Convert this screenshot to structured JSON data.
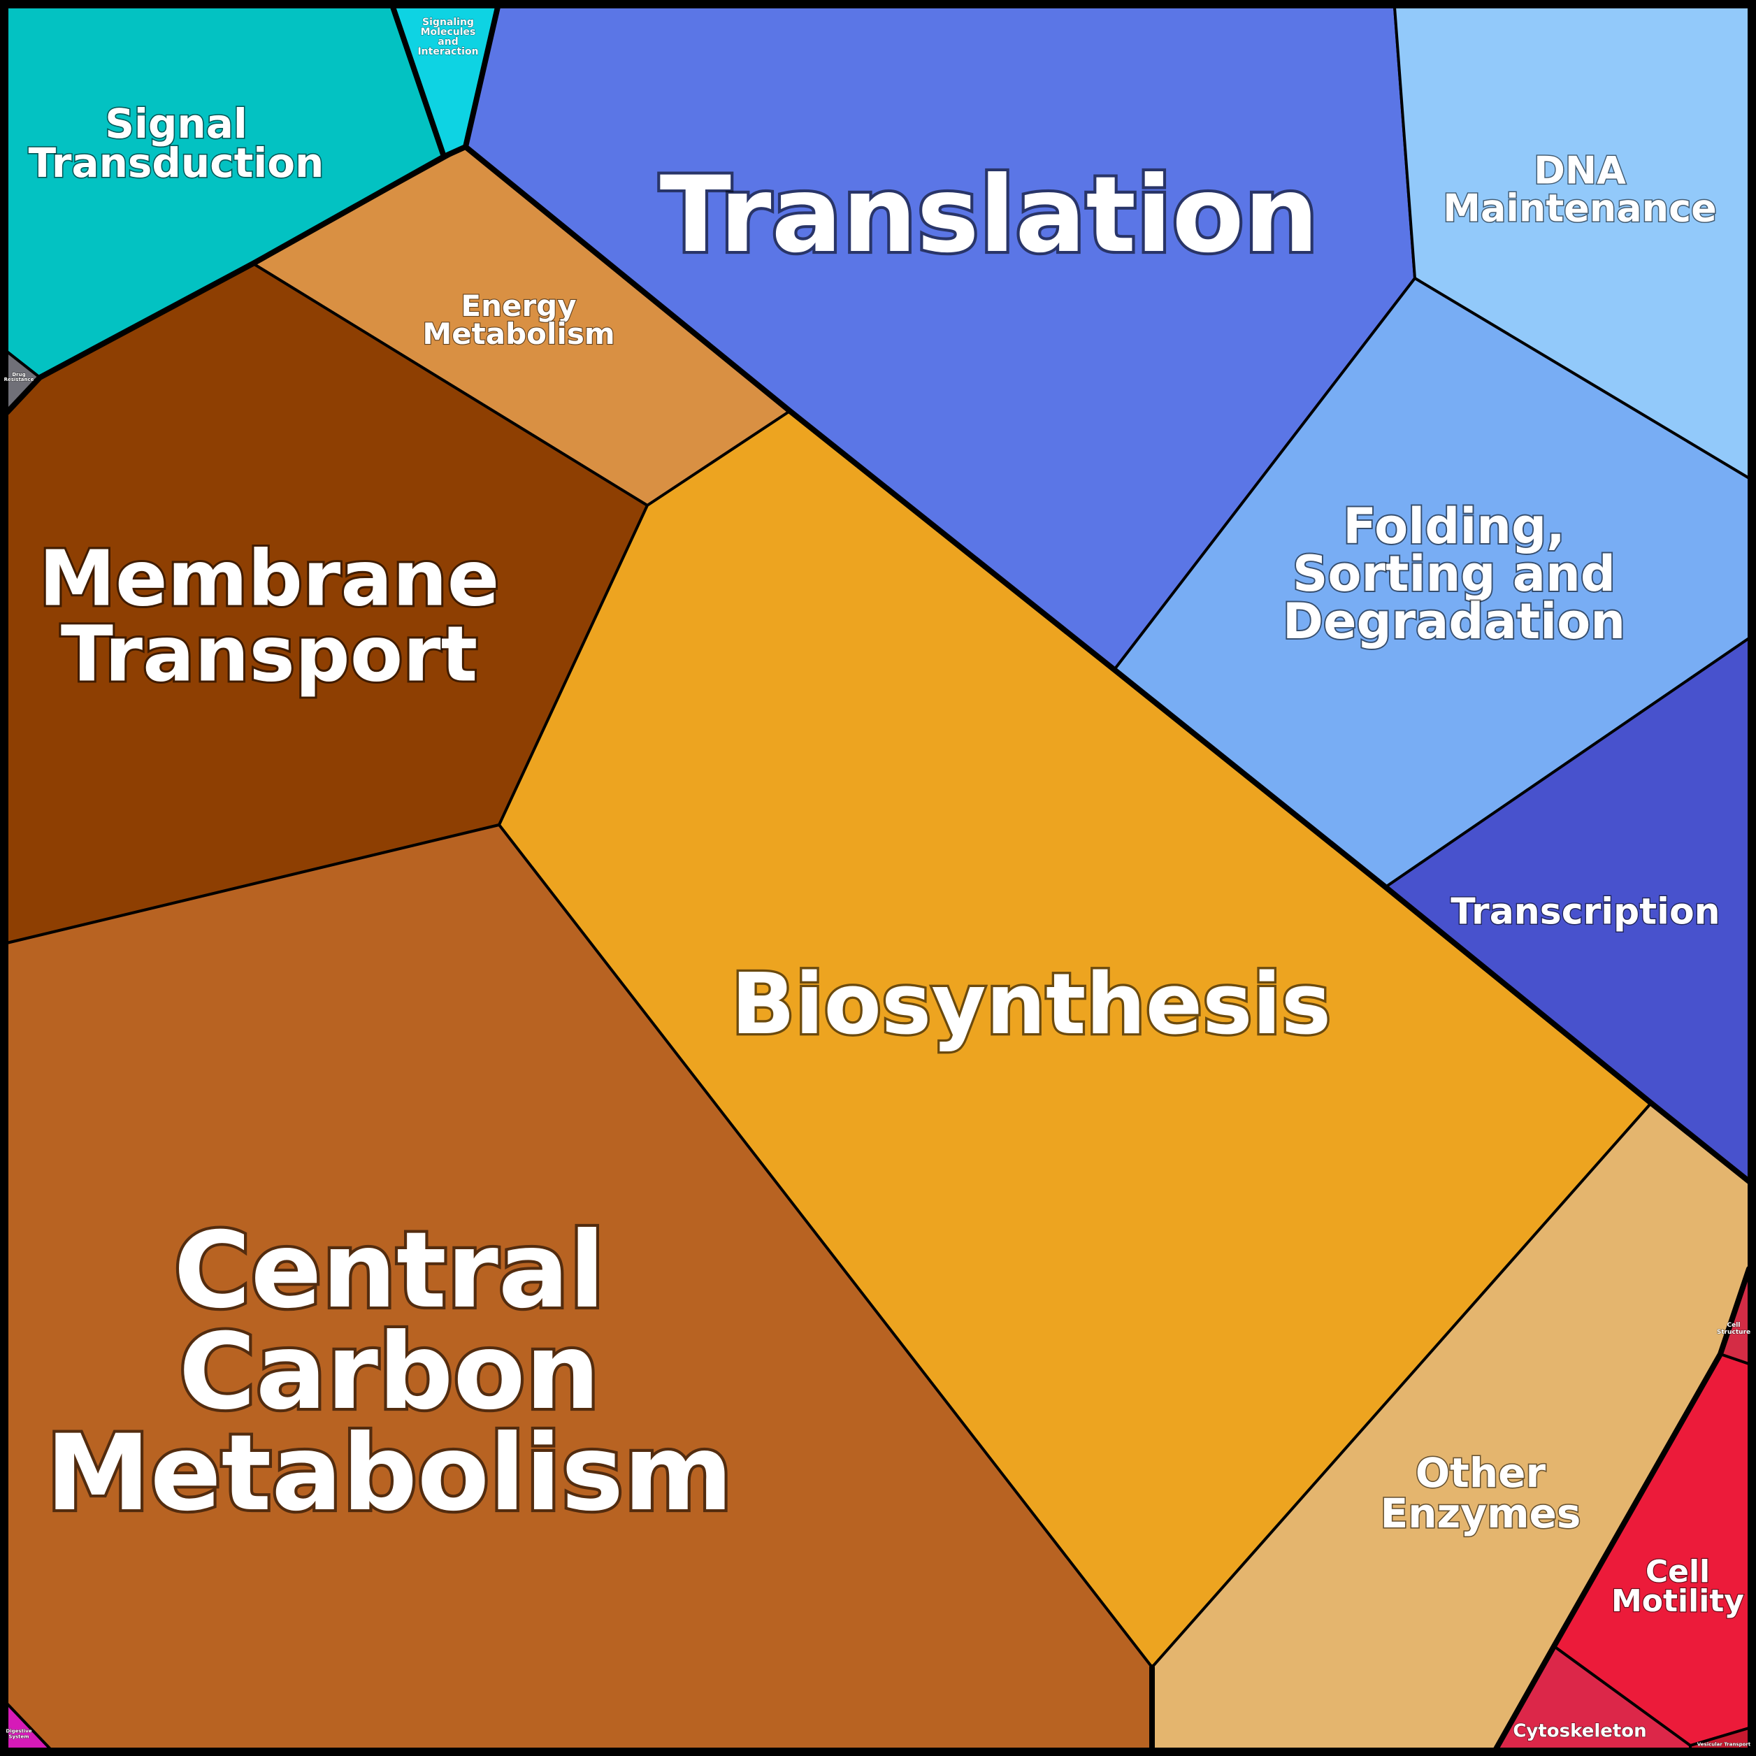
{
  "cells": [
    {
      "id": "translation",
      "label": [
        "Translation"
      ],
      "color": "#5b76e6"
    },
    {
      "id": "dna-maintenance",
      "label": [
        "DNA",
        "Maintenance"
      ],
      "color": "#92c9fa"
    },
    {
      "id": "folding-sorting-degradation",
      "label": [
        "Folding,",
        "Sorting and",
        "Degradation"
      ],
      "color": "#78adf4"
    },
    {
      "id": "transcription",
      "label": [
        "Transcription"
      ],
      "color": "#4852cd"
    },
    {
      "id": "signal-transduction",
      "label": [
        "Signal",
        "Transduction"
      ],
      "color": "#03c2c2"
    },
    {
      "id": "signaling-molecules",
      "label": [
        "Signaling",
        "Molecules",
        "and",
        "Interaction"
      ],
      "color": "#0ed3e3"
    },
    {
      "id": "energy-metabolism",
      "label": [
        "Energy",
        "Metabolism"
      ],
      "color": "#d99043"
    },
    {
      "id": "membrane-transport",
      "label": [
        "Membrane",
        "Transport"
      ],
      "color": "#8e3f02"
    },
    {
      "id": "biosynthesis",
      "label": [
        "Biosynthesis"
      ],
      "color": "#eda420"
    },
    {
      "id": "central-carbon-metabolism",
      "label": [
        "Central",
        "Carbon",
        "Metabolism"
      ],
      "color": "#b86322"
    },
    {
      "id": "other-enzymes",
      "label": [
        "Other",
        "Enzymes"
      ],
      "color": "#e4b56e"
    },
    {
      "id": "cell-motility",
      "label": [
        "Cell",
        "Motility"
      ],
      "color": "#ec1b3a"
    },
    {
      "id": "cytoskeleton",
      "label": [
        "Cytoskeleton"
      ],
      "color": "#dc2749"
    },
    {
      "id": "cell-structure",
      "label": [
        "Cell",
        "Structure"
      ],
      "color": "#d42c45"
    },
    {
      "id": "vesicular-transport",
      "label": [
        "Vesicular Transport"
      ],
      "color": "#c8192f"
    },
    {
      "id": "drug-resistance",
      "label": [
        "Drug",
        "Resistance"
      ],
      "color": "#707078"
    },
    {
      "id": "digestive-system",
      "label": [
        "Digestive",
        "System"
      ],
      "color": "#d61ab8"
    }
  ]
}
